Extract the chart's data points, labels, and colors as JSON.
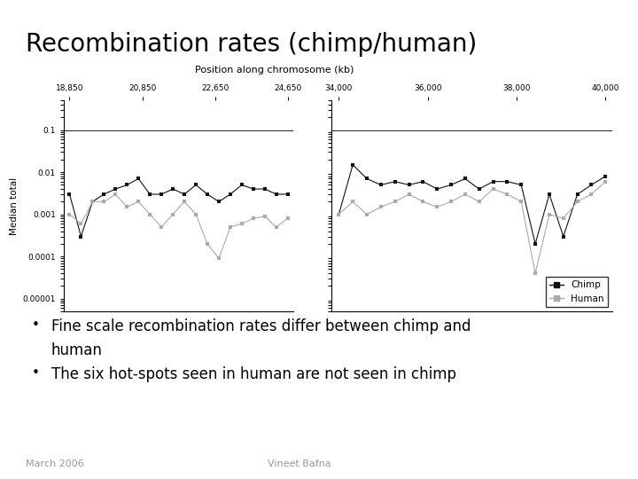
{
  "title": "Recombination rates (chimp/human)",
  "title_bg_color": "#b0d8de",
  "slide_bg_color": "#ffffff",
  "bullet1_line1": "Fine scale recombination rates differ between chimp and",
  "bullet1_line2": "human",
  "bullet2": "The six hot-spots seen in human are not seen in chimp",
  "footer_left": "March 2006",
  "footer_right": "Vineet Bafna",
  "plot_xlabel": "Position along chromosome (kb)",
  "plot_ylabel": "Median total",
  "x_ticks_left": [
    "18,850",
    "20,850",
    "22,650",
    "24,650"
  ],
  "x_ticks_right": [
    "34,000",
    "36,000",
    "38,000",
    "40,000"
  ],
  "y_ticks_vals": [
    1e-05,
    0.0001,
    0.001,
    0.01,
    0.1
  ],
  "y_ticks_labels": [
    "0.00001",
    "0.0001",
    "0.001",
    "0.01",
    "0.1"
  ],
  "legend_chimp": "Chimp",
  "legend_human": "Human",
  "chimp_color": "#111111",
  "human_color": "#aaaaaa",
  "chimp_y_left": [
    0.003,
    0.0003,
    0.002,
    0.003,
    0.004,
    0.005,
    0.007,
    0.003,
    0.003,
    0.004,
    0.003,
    0.005,
    0.003,
    0.002,
    0.003,
    0.005,
    0.004,
    0.004,
    0.003,
    0.003
  ],
  "human_y_left": [
    0.001,
    0.0006,
    0.002,
    0.002,
    0.003,
    0.0015,
    0.002,
    0.001,
    0.0005,
    0.001,
    0.002,
    0.001,
    0.0002,
    9e-05,
    0.0005,
    0.0006,
    0.0008,
    0.0009,
    0.0005,
    0.0008
  ],
  "chimp_y_right": [
    0.001,
    0.015,
    0.007,
    0.005,
    0.006,
    0.005,
    0.006,
    0.004,
    0.005,
    0.007,
    0.004,
    0.006,
    0.006,
    0.005,
    0.0002,
    0.003,
    0.0003,
    0.003,
    0.005,
    0.008
  ],
  "human_y_right": [
    0.001,
    0.002,
    0.001,
    0.0015,
    0.002,
    0.003,
    0.002,
    0.0015,
    0.002,
    0.003,
    0.002,
    0.004,
    0.003,
    0.002,
    4e-05,
    0.001,
    0.0008,
    0.002,
    0.003,
    0.006
  ]
}
